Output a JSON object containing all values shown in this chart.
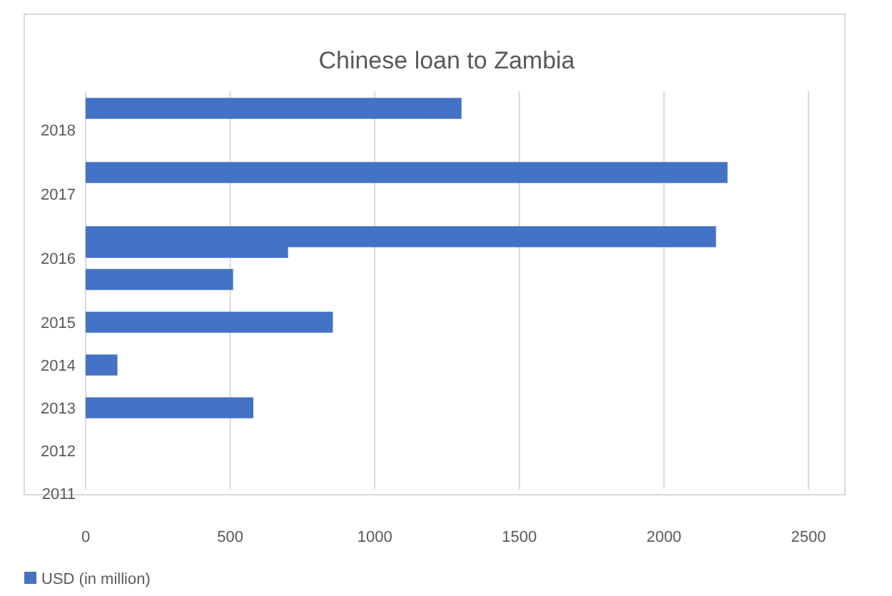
{
  "chart_data": {
    "type": "bar",
    "orientation": "horizontal",
    "title": "Chinese loan to Zambia",
    "categories": [
      null,
      null,
      "2018",
      null,
      null,
      null,
      null,
      null,
      "2017",
      null,
      null,
      null,
      null,
      null,
      "2016",
      null,
      null,
      null,
      null,
      null,
      "2015",
      null,
      null,
      null,
      "2014",
      null,
      null,
      null,
      "2013",
      null,
      null,
      null,
      "2012",
      null,
      null,
      null,
      "2011"
    ],
    "series": [
      {
        "name": "USD (in million)",
        "color": "#4472c4",
        "values": [
          1300,
          null,
          null,
          null,
          null,
          null,
          2220,
          null,
          null,
          null,
          null,
          null,
          2180,
          700,
          null,
          null,
          510,
          null,
          null,
          null,
          855,
          null,
          null,
          null,
          110,
          null,
          null,
          null,
          580,
          null,
          null,
          null,
          null,
          null,
          null,
          null,
          null
        ]
      }
    ],
    "xlim": [
      0,
      2500
    ],
    "xticks": [
      0,
      500,
      1000,
      1500,
      2000,
      2500
    ],
    "grid": "x",
    "legend": "bottom left"
  }
}
